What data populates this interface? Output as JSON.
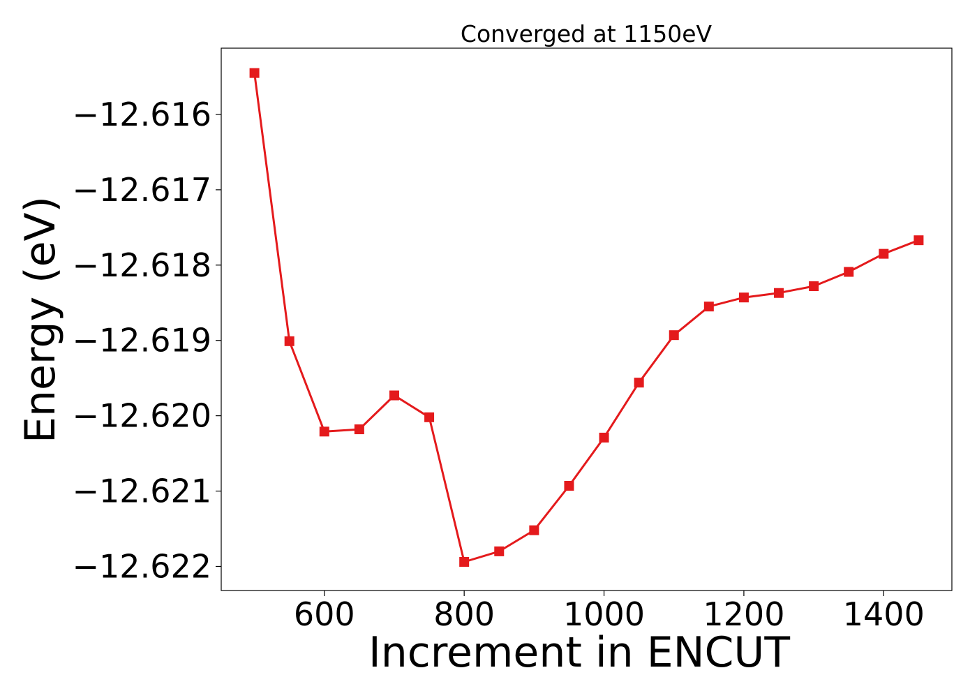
{
  "chart_data": {
    "type": "line",
    "title": "Converged at 1150eV",
    "xlabel": "Increment in ENCUT",
    "ylabel": "Energy (eV)",
    "xlim": [
      452.5,
      1497.5
    ],
    "ylim": [
      -12.62232,
      -12.61512
    ],
    "x_ticks": [
      600,
      800,
      1000,
      1200,
      1400
    ],
    "x_tick_labels": [
      "600",
      "800",
      "1000",
      "1200",
      "1400"
    ],
    "y_ticks": [
      -12.616,
      -12.617,
      -12.618,
      -12.619,
      -12.62,
      -12.621,
      -12.622
    ],
    "y_tick_labels": [
      "−12.616",
      "−12.617",
      "−12.618",
      "−12.619",
      "−12.620",
      "−12.621",
      "−12.622"
    ],
    "grid": false,
    "legend": "none",
    "series": [
      {
        "color": "#e41a1c",
        "marker": "square",
        "x": [
          500,
          550,
          600,
          650,
          700,
          750,
          800,
          850,
          900,
          950,
          1000,
          1050,
          1100,
          1150,
          1200,
          1250,
          1300,
          1350,
          1400,
          1450
        ],
        "y": [
          -12.61545,
          -12.61901,
          -12.62021,
          -12.62018,
          -12.61973,
          -12.62002,
          -12.62194,
          -12.6218,
          -12.62152,
          -12.62093,
          -12.62029,
          -12.61956,
          -12.61893,
          -12.61855,
          -12.61843,
          -12.61837,
          -12.61828,
          -12.61809,
          -12.61785,
          -12.61767
        ]
      }
    ]
  }
}
